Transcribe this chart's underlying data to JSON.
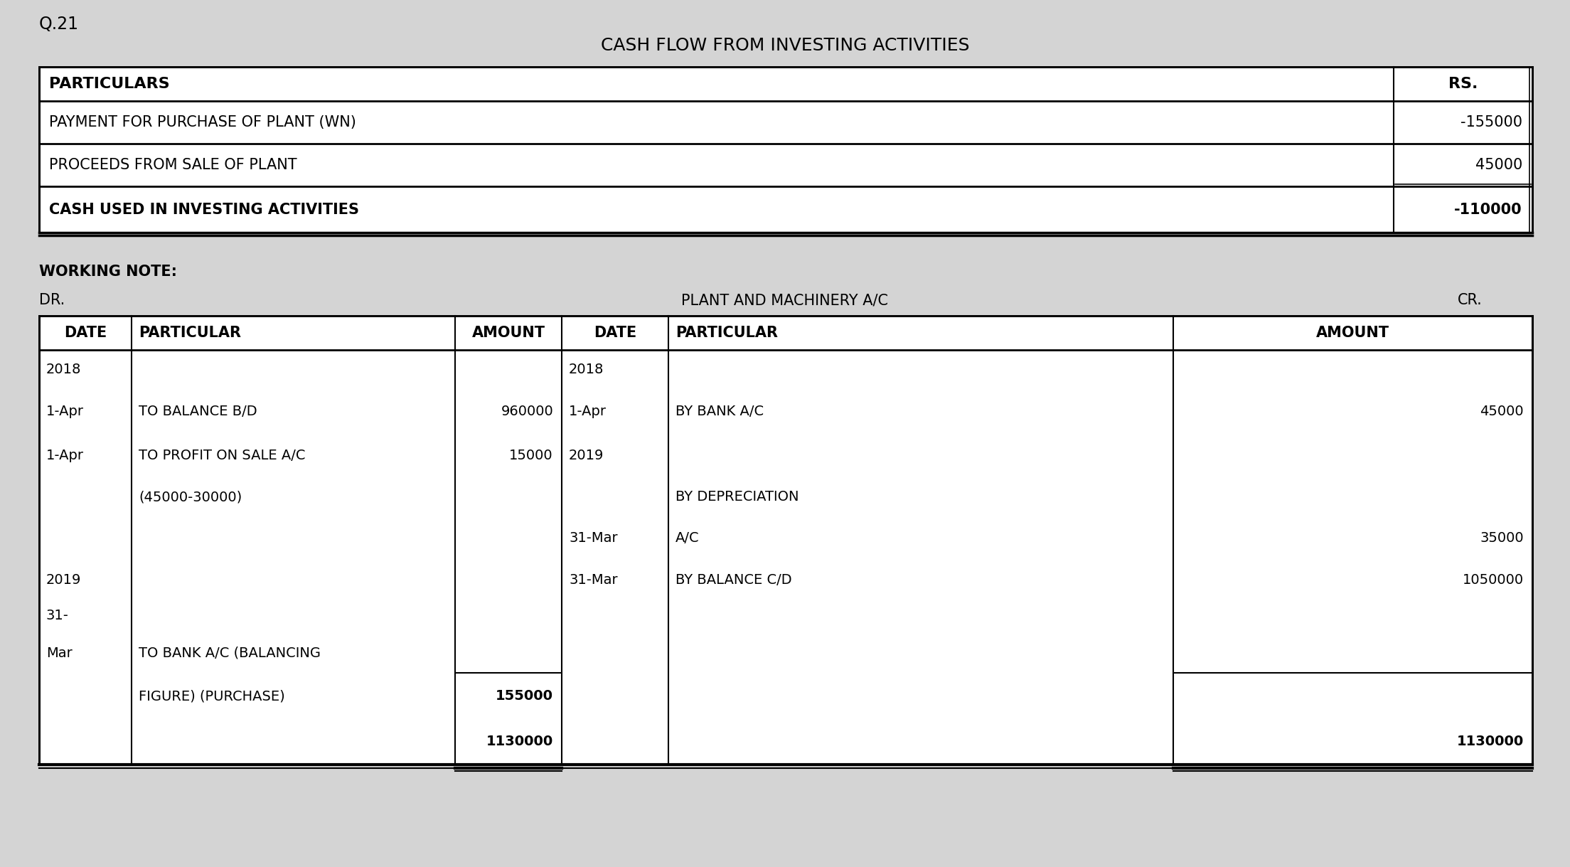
{
  "bg_color": "#d4d4d4",
  "title_q": "Q.21",
  "title_main": "CASH FLOW FROM INVESTING ACTIVITIES",
  "cf_headers": [
    "PARTICULARS",
    "RS."
  ],
  "cf_rows": [
    [
      "PAYMENT FOR PURCHASE OF PLANT (WN)",
      "-155000",
      false
    ],
    [
      "PROCEEDS FROM SALE OF PLANT",
      "45000",
      false
    ],
    [
      "CASH USED IN INVESTING ACTIVITIES",
      "-110000",
      true
    ]
  ],
  "working_note_label": "WORKING NOTE:",
  "dr_label": "DR.",
  "cr_label": "CR.",
  "ledger_title": "PLANT AND MACHINERY A/C",
  "ledger_headers": [
    "DATE",
    "PARTICULAR",
    "AMOUNT",
    "DATE",
    "PARTICULAR",
    "AMOUNT"
  ],
  "ledger_rows": [
    [
      "2018",
      "",
      "",
      "2018",
      "",
      ""
    ],
    [
      "1-Apr",
      "TO BALANCE B/D",
      "960000",
      "1-Apr",
      "BY BANK A/C",
      "45000"
    ],
    [
      "1-Apr",
      "TO PROFIT ON SALE A/C",
      "15000",
      "2019",
      "",
      ""
    ],
    [
      "",
      "(45000-30000)",
      "",
      "",
      "BY DEPRECIATION",
      ""
    ],
    [
      "",
      "",
      "",
      "31-Mar",
      "A/C",
      "35000"
    ],
    [
      "2019",
      "",
      "",
      "31-Mar",
      "BY BALANCE C/D",
      "1050000"
    ],
    [
      "31-",
      "",
      "",
      "",
      "",
      ""
    ],
    [
      "Mar",
      "TO BANK A/C (BALANCING",
      "",
      "",
      "",
      ""
    ],
    [
      "",
      "FIGURE) (PURCHASE)",
      "155000",
      "",
      "",
      ""
    ],
    [
      "",
      "",
      "1130000",
      "",
      "",
      "1130000"
    ]
  ]
}
